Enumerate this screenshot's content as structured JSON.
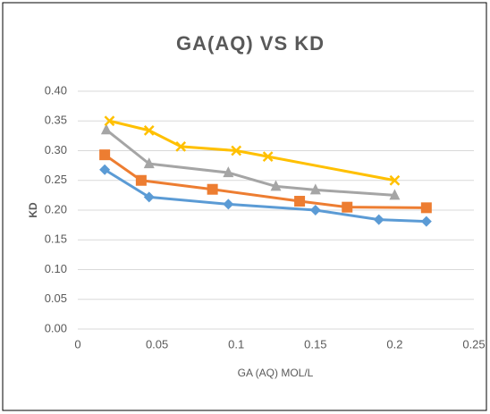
{
  "chart_data": {
    "type": "line",
    "title": "GA(AQ) VS KD",
    "x_label": "GA (AQ) MOL/L",
    "y_label": "KD",
    "xlim": [
      0,
      0.25
    ],
    "xticks": [
      0,
      0.05,
      0.1,
      0.15,
      0.2,
      0.25
    ],
    "ylim": [
      0,
      0.4
    ],
    "yticks": [
      {
        "value": 0,
        "label": "0.00"
      },
      {
        "value": 0.05,
        "label": "0.05"
      },
      {
        "value": 0.1,
        "label": "0.10"
      },
      {
        "value": 0.15,
        "label": "0.15"
      },
      {
        "value": 0.2,
        "label": "0.20"
      },
      {
        "value": 0.25,
        "label": "0.25"
      },
      {
        "value": 0.3,
        "label": "0.30"
      },
      {
        "value": 0.35,
        "label": "0.35"
      },
      {
        "value": 0.4,
        "label": "0.40"
      }
    ],
    "grid": true,
    "series": [
      {
        "color": "#5b9bd5",
        "marker": "diamond",
        "x": [
          0.017,
          0.045,
          0.095,
          0.15,
          0.19,
          0.22
        ],
        "values": [
          0.268,
          0.222,
          0.21,
          0.2,
          0.184,
          0.181
        ]
      },
      {
        "color": "#ed7d31",
        "marker": "square",
        "x": [
          0.017,
          0.04,
          0.085,
          0.14,
          0.17,
          0.22
        ],
        "values": [
          0.293,
          0.25,
          0.235,
          0.215,
          0.205,
          0.204
        ]
      },
      {
        "color": "#a5a5a5",
        "marker": "triangle",
        "x": [
          0.018,
          0.045,
          0.095,
          0.125,
          0.15,
          0.2
        ],
        "values": [
          0.335,
          0.278,
          0.263,
          0.24,
          0.234,
          0.225
        ]
      },
      {
        "color": "#ffc000",
        "marker": "x",
        "x": [
          0.02,
          0.045,
          0.065,
          0.1,
          0.12,
          0.2
        ],
        "values": [
          0.35,
          0.334,
          0.307,
          0.3,
          0.29,
          0.25
        ]
      }
    ]
  }
}
